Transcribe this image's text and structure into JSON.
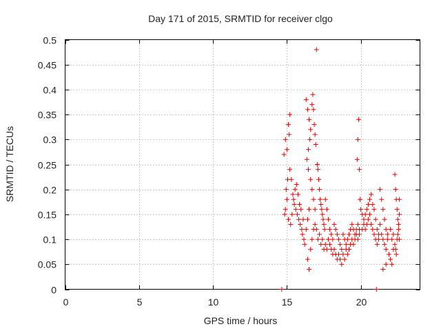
{
  "chart_data": {
    "type": "scatter",
    "title": "Day 171 of 2015, SRMTID for receiver clgo",
    "xlabel": "GPS time / hours",
    "ylabel": "SRMTID / TECUs",
    "xlim": [
      0,
      24
    ],
    "ylim": [
      0,
      0.5
    ],
    "grid": true,
    "marker": "+",
    "series_color": "#e00000",
    "x_ticks": [
      0,
      5,
      10,
      15,
      20
    ],
    "x_tick_labels": [
      "0",
      "5",
      "10",
      "15",
      "20"
    ],
    "y_ticks": [
      0,
      0.05,
      0.1,
      0.15,
      0.2,
      0.25,
      0.3,
      0.35,
      0.4,
      0.45,
      0.5
    ],
    "y_tick_labels": [
      "0",
      "0.05",
      "0.1",
      "0.15",
      "0.2",
      "0.25",
      "0.3",
      "0.35",
      "0.4",
      "0.45",
      "0.5"
    ],
    "series": [
      {
        "name": "SRMTID",
        "points": [
          [
            14.65,
            0.0
          ],
          [
            21.05,
            0.0
          ],
          [
            14.9,
            0.3
          ],
          [
            15.0,
            0.28
          ],
          [
            15.1,
            0.33
          ],
          [
            15.2,
            0.35
          ],
          [
            15.15,
            0.31
          ],
          [
            15.05,
            0.22
          ],
          [
            14.8,
            0.27
          ],
          [
            14.95,
            0.2
          ],
          [
            15.2,
            0.24
          ],
          [
            15.3,
            0.22
          ],
          [
            15.4,
            0.19
          ],
          [
            15.5,
            0.17
          ],
          [
            15.6,
            0.16
          ],
          [
            15.7,
            0.15
          ],
          [
            15.8,
            0.14
          ],
          [
            15.9,
            0.13
          ],
          [
            16.0,
            0.12
          ],
          [
            16.1,
            0.14
          ],
          [
            14.85,
            0.15
          ],
          [
            14.9,
            0.16
          ],
          [
            15.0,
            0.18
          ],
          [
            15.1,
            0.14
          ],
          [
            15.25,
            0.13
          ],
          [
            15.35,
            0.15
          ],
          [
            15.45,
            0.18
          ],
          [
            15.55,
            0.2
          ],
          [
            15.65,
            0.21
          ],
          [
            15.75,
            0.19
          ],
          [
            15.85,
            0.17
          ],
          [
            15.95,
            0.16
          ],
          [
            16.05,
            0.11
          ],
          [
            16.15,
            0.1
          ],
          [
            16.2,
            0.09
          ],
          [
            16.3,
            0.12
          ],
          [
            16.4,
            0.14
          ],
          [
            16.5,
            0.16
          ],
          [
            16.3,
            0.38
          ],
          [
            16.4,
            0.36
          ],
          [
            16.5,
            0.34
          ],
          [
            16.6,
            0.32
          ],
          [
            16.55,
            0.3
          ],
          [
            16.45,
            0.28
          ],
          [
            16.7,
            0.37
          ],
          [
            16.75,
            0.39
          ],
          [
            16.8,
            0.36
          ],
          [
            16.85,
            0.33
          ],
          [
            16.9,
            0.31
          ],
          [
            16.95,
            0.29
          ],
          [
            16.35,
            0.26
          ],
          [
            16.45,
            0.24
          ],
          [
            16.6,
            0.22
          ],
          [
            16.7,
            0.2
          ],
          [
            16.8,
            0.18
          ],
          [
            16.9,
            0.16
          ],
          [
            16.4,
            0.06
          ],
          [
            16.5,
            0.04
          ],
          [
            16.6,
            0.08
          ],
          [
            16.7,
            0.1
          ],
          [
            16.8,
            0.12
          ],
          [
            16.9,
            0.13
          ],
          [
            17.0,
            0.48
          ],
          [
            17.05,
            0.25
          ],
          [
            17.1,
            0.24
          ],
          [
            17.15,
            0.22
          ],
          [
            17.2,
            0.2
          ],
          [
            17.25,
            0.18
          ],
          [
            17.3,
            0.17
          ],
          [
            17.35,
            0.16
          ],
          [
            17.4,
            0.15
          ],
          [
            17.45,
            0.14
          ],
          [
            17.5,
            0.13
          ],
          [
            17.55,
            0.12
          ],
          [
            17.0,
            0.12
          ],
          [
            17.1,
            0.1
          ],
          [
            17.2,
            0.11
          ],
          [
            17.3,
            0.09
          ],
          [
            17.4,
            0.1
          ],
          [
            17.5,
            0.08
          ],
          [
            17.6,
            0.18
          ],
          [
            17.7,
            0.16
          ],
          [
            17.8,
            0.14
          ],
          [
            17.9,
            0.12
          ],
          [
            18.0,
            0.11
          ],
          [
            18.1,
            0.1
          ],
          [
            17.6,
            0.09
          ],
          [
            17.7,
            0.08
          ],
          [
            17.8,
            0.1
          ],
          [
            17.9,
            0.09
          ],
          [
            18.0,
            0.08
          ],
          [
            18.1,
            0.07
          ],
          [
            18.2,
            0.13
          ],
          [
            18.3,
            0.12
          ],
          [
            18.4,
            0.11
          ],
          [
            18.5,
            0.1
          ],
          [
            18.6,
            0.09
          ],
          [
            18.7,
            0.08
          ],
          [
            18.2,
            0.08
          ],
          [
            18.3,
            0.07
          ],
          [
            18.4,
            0.06
          ],
          [
            18.5,
            0.07
          ],
          [
            18.6,
            0.06
          ],
          [
            18.7,
            0.05
          ],
          [
            18.8,
            0.11
          ],
          [
            18.9,
            0.1
          ],
          [
            19.0,
            0.09
          ],
          [
            19.1,
            0.1
          ],
          [
            19.2,
            0.11
          ],
          [
            19.3,
            0.12
          ],
          [
            18.8,
            0.07
          ],
          [
            18.9,
            0.06
          ],
          [
            19.0,
            0.08
          ],
          [
            19.1,
            0.07
          ],
          [
            19.2,
            0.08
          ],
          [
            19.3,
            0.09
          ],
          [
            19.4,
            0.13
          ],
          [
            19.5,
            0.12
          ],
          [
            19.6,
            0.11
          ],
          [
            19.7,
            0.12
          ],
          [
            19.8,
            0.13
          ],
          [
            19.9,
            0.12
          ],
          [
            19.4,
            0.1
          ],
          [
            19.5,
            0.09
          ],
          [
            19.6,
            0.1
          ],
          [
            19.7,
            0.11
          ],
          [
            19.8,
            0.1
          ],
          [
            19.9,
            0.11
          ],
          [
            19.85,
            0.34
          ],
          [
            19.8,
            0.3
          ],
          [
            19.75,
            0.26
          ],
          [
            19.9,
            0.24
          ],
          [
            19.95,
            0.18
          ],
          [
            20.0,
            0.16
          ],
          [
            20.1,
            0.15
          ],
          [
            20.2,
            0.14
          ],
          [
            20.3,
            0.15
          ],
          [
            20.4,
            0.16
          ],
          [
            20.5,
            0.17
          ],
          [
            20.6,
            0.18
          ],
          [
            20.1,
            0.12
          ],
          [
            20.2,
            0.13
          ],
          [
            20.3,
            0.12
          ],
          [
            20.4,
            0.13
          ],
          [
            20.5,
            0.14
          ],
          [
            20.6,
            0.15
          ],
          [
            20.7,
            0.19
          ],
          [
            20.8,
            0.17
          ],
          [
            20.9,
            0.16
          ],
          [
            21.0,
            0.14
          ],
          [
            21.1,
            0.12
          ],
          [
            21.2,
            0.11
          ],
          [
            20.7,
            0.13
          ],
          [
            20.8,
            0.12
          ],
          [
            20.9,
            0.11
          ],
          [
            21.0,
            0.1
          ],
          [
            21.1,
            0.09
          ],
          [
            21.2,
            0.1
          ],
          [
            21.3,
            0.2
          ],
          [
            21.4,
            0.18
          ],
          [
            21.5,
            0.16
          ],
          [
            21.6,
            0.14
          ],
          [
            21.7,
            0.12
          ],
          [
            21.8,
            0.11
          ],
          [
            21.3,
            0.13
          ],
          [
            21.4,
            0.11
          ],
          [
            21.5,
            0.1
          ],
          [
            21.6,
            0.09
          ],
          [
            21.7,
            0.08
          ],
          [
            21.8,
            0.1
          ],
          [
            21.5,
            0.04
          ],
          [
            21.7,
            0.05
          ],
          [
            21.9,
            0.07
          ],
          [
            22.0,
            0.12
          ],
          [
            22.1,
            0.1
          ],
          [
            22.2,
            0.11
          ],
          [
            22.3,
            0.23
          ],
          [
            22.35,
            0.2
          ],
          [
            22.4,
            0.18
          ],
          [
            22.45,
            0.16
          ],
          [
            22.5,
            0.14
          ],
          [
            22.55,
            0.12
          ],
          [
            22.3,
            0.09
          ],
          [
            22.35,
            0.08
          ],
          [
            22.4,
            0.07
          ],
          [
            22.45,
            0.1
          ],
          [
            22.5,
            0.11
          ],
          [
            22.55,
            0.13
          ],
          [
            22.0,
            0.06
          ],
          [
            22.1,
            0.05
          ],
          [
            22.2,
            0.08
          ],
          [
            22.6,
            0.15
          ],
          [
            22.6,
            0.18
          ],
          [
            22.6,
            0.1
          ]
        ]
      }
    ]
  }
}
